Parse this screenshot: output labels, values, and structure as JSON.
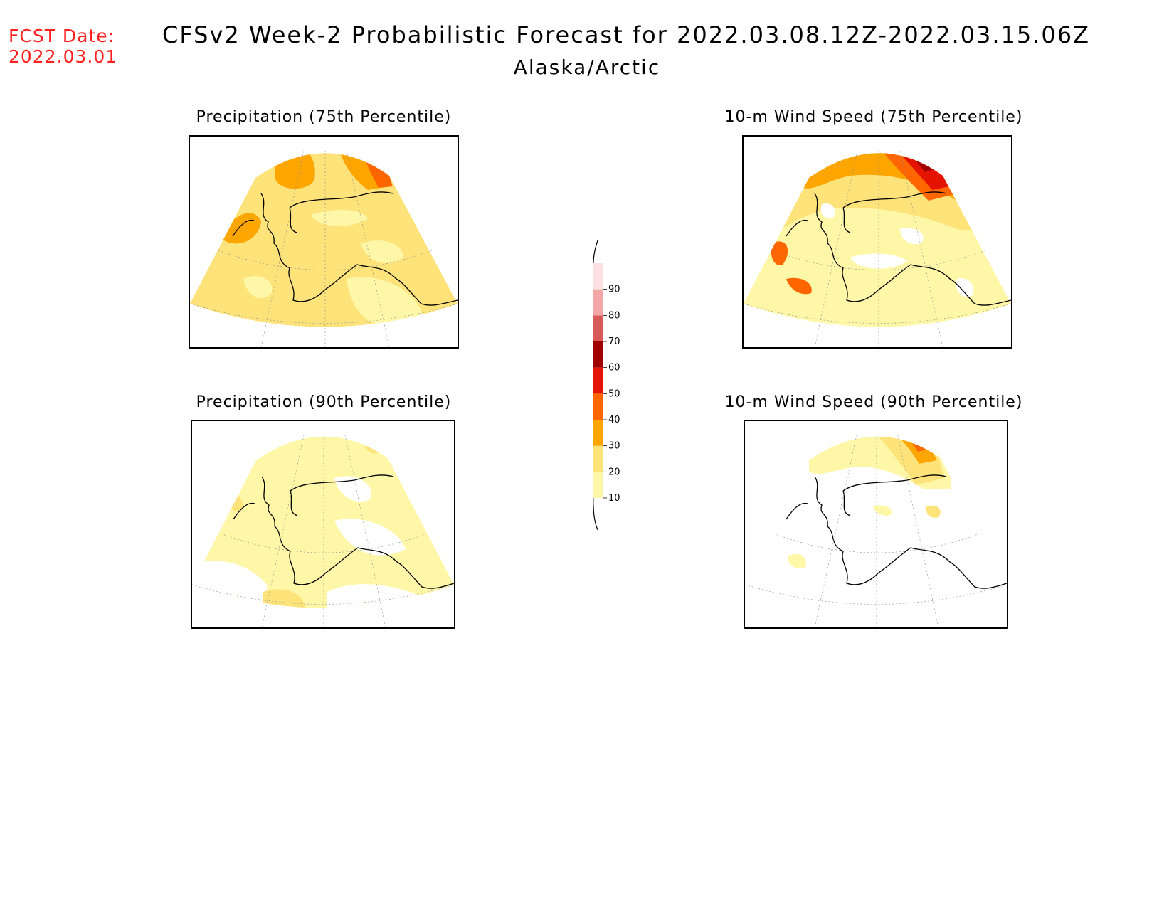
{
  "header": {
    "fcst_label": "FCST Date:",
    "fcst_date": "2022.03.01",
    "title": "CFSv2 Week-2 Probabilistic Forecast for 2022.03.08.12Z-2022.03.15.06Z",
    "subtitle": "Alaska/Arctic"
  },
  "panels": [
    {
      "title": "Precipitation (75th Percentile)"
    },
    {
      "title": "10-m Wind Speed (75th Percentile)"
    },
    {
      "title": "Precipitation (90th Percentile)"
    },
    {
      "title": "10-m Wind Speed (90th Percentile)"
    }
  ],
  "legend": {
    "levels": [
      "10",
      "20",
      "30",
      "40",
      "50",
      "60",
      "70",
      "80",
      "90"
    ],
    "colors": [
      "#fff7a8",
      "#fde37a",
      "#fda500",
      "#ff6600",
      "#e51400",
      "#a00000",
      "#d85a5a",
      "#f3a6a6",
      "#fde0e0"
    ]
  }
}
